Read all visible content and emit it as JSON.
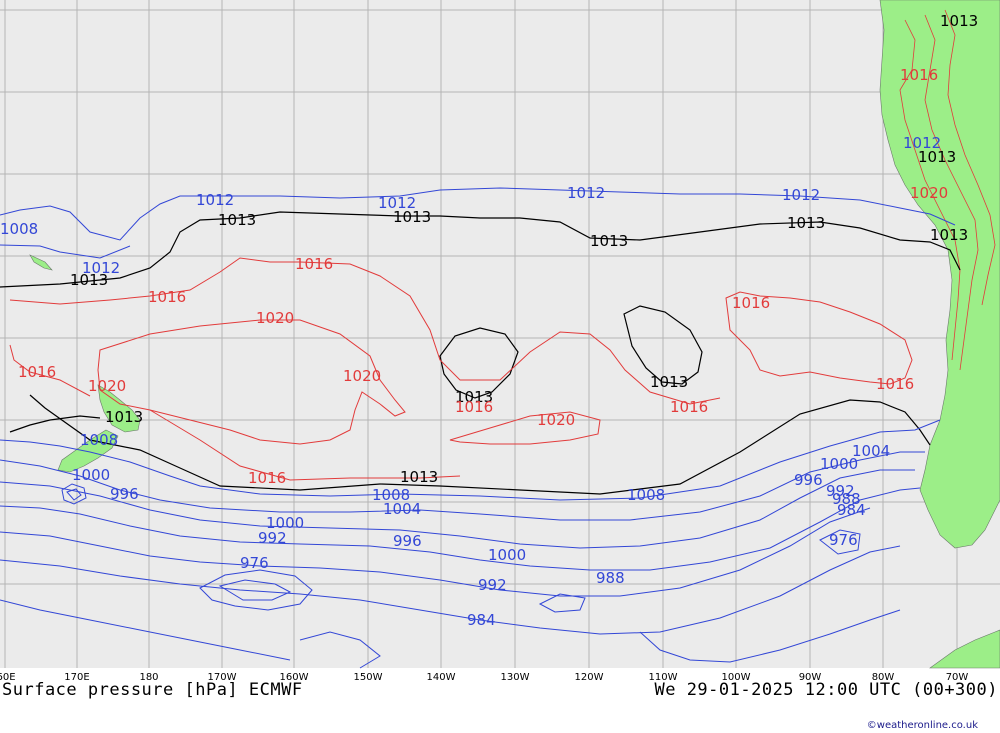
{
  "map": {
    "title": "Surface pressure [hPa] ECMWF",
    "valid_time": "We 29-01-2025 12:00 UTC (00+300)",
    "credit": "©weatheronline.co.uk",
    "longitude_labels": [
      "60E",
      "170E",
      "180",
      "170W",
      "160W",
      "150W",
      "140W",
      "130W",
      "120W",
      "110W",
      "100W",
      "90W",
      "80W",
      "70W"
    ],
    "colors": {
      "ocean": "#ebebeb",
      "land": "#9cee88",
      "grid": "#b4b4b4",
      "high_isobar": "#e23b3b",
      "low_isobar": "#3347d6",
      "ref_isobar": "#000000"
    },
    "isobar_labels": [
      {
        "text": "1013",
        "kind": "ref"
      },
      {
        "text": "1013",
        "kind": "ref"
      },
      {
        "text": "1013",
        "kind": "ref"
      },
      {
        "text": "1013",
        "kind": "ref"
      },
      {
        "text": "1013",
        "kind": "ref"
      },
      {
        "text": "1013",
        "kind": "ref"
      },
      {
        "text": "1013",
        "kind": "ref"
      },
      {
        "text": "1013",
        "kind": "ref"
      },
      {
        "text": "1013",
        "kind": "ref"
      },
      {
        "text": "1013",
        "kind": "ref"
      },
      {
        "text": "1013",
        "kind": "ref"
      },
      {
        "text": "1013",
        "kind": "ref"
      },
      {
        "text": "1012",
        "kind": "low"
      },
      {
        "text": "1012",
        "kind": "low"
      },
      {
        "text": "1012",
        "kind": "low"
      },
      {
        "text": "1012",
        "kind": "low"
      },
      {
        "text": "1012",
        "kind": "low"
      },
      {
        "text": "1012",
        "kind": "low"
      },
      {
        "text": "1008",
        "kind": "low"
      },
      {
        "text": "1008",
        "kind": "low"
      },
      {
        "text": "1008",
        "kind": "low"
      },
      {
        "text": "1008",
        "kind": "low"
      },
      {
        "text": "1004",
        "kind": "low"
      },
      {
        "text": "1004",
        "kind": "low"
      },
      {
        "text": "1000",
        "kind": "low"
      },
      {
        "text": "1000",
        "kind": "low"
      },
      {
        "text": "1000",
        "kind": "low"
      },
      {
        "text": "1000",
        "kind": "low"
      },
      {
        "text": "996",
        "kind": "low"
      },
      {
        "text": "996",
        "kind": "low"
      },
      {
        "text": "996",
        "kind": "low"
      },
      {
        "text": "992",
        "kind": "low"
      },
      {
        "text": "992",
        "kind": "low"
      },
      {
        "text": "992",
        "kind": "low"
      },
      {
        "text": "988",
        "kind": "low"
      },
      {
        "text": "988",
        "kind": "low"
      },
      {
        "text": "984",
        "kind": "low"
      },
      {
        "text": "984",
        "kind": "low"
      },
      {
        "text": "976",
        "kind": "low"
      },
      {
        "text": "976",
        "kind": "low"
      },
      {
        "text": "1016",
        "kind": "high"
      },
      {
        "text": "1016",
        "kind": "high"
      },
      {
        "text": "1016",
        "kind": "high"
      },
      {
        "text": "1016",
        "kind": "high"
      },
      {
        "text": "1016",
        "kind": "high"
      },
      {
        "text": "1016",
        "kind": "high"
      },
      {
        "text": "1016",
        "kind": "high"
      },
      {
        "text": "1016",
        "kind": "high"
      },
      {
        "text": "1016",
        "kind": "high"
      },
      {
        "text": "1020",
        "kind": "high"
      },
      {
        "text": "1020",
        "kind": "high"
      },
      {
        "text": "1020",
        "kind": "high"
      },
      {
        "text": "1020",
        "kind": "high"
      },
      {
        "text": "1020",
        "kind": "high"
      }
    ]
  }
}
